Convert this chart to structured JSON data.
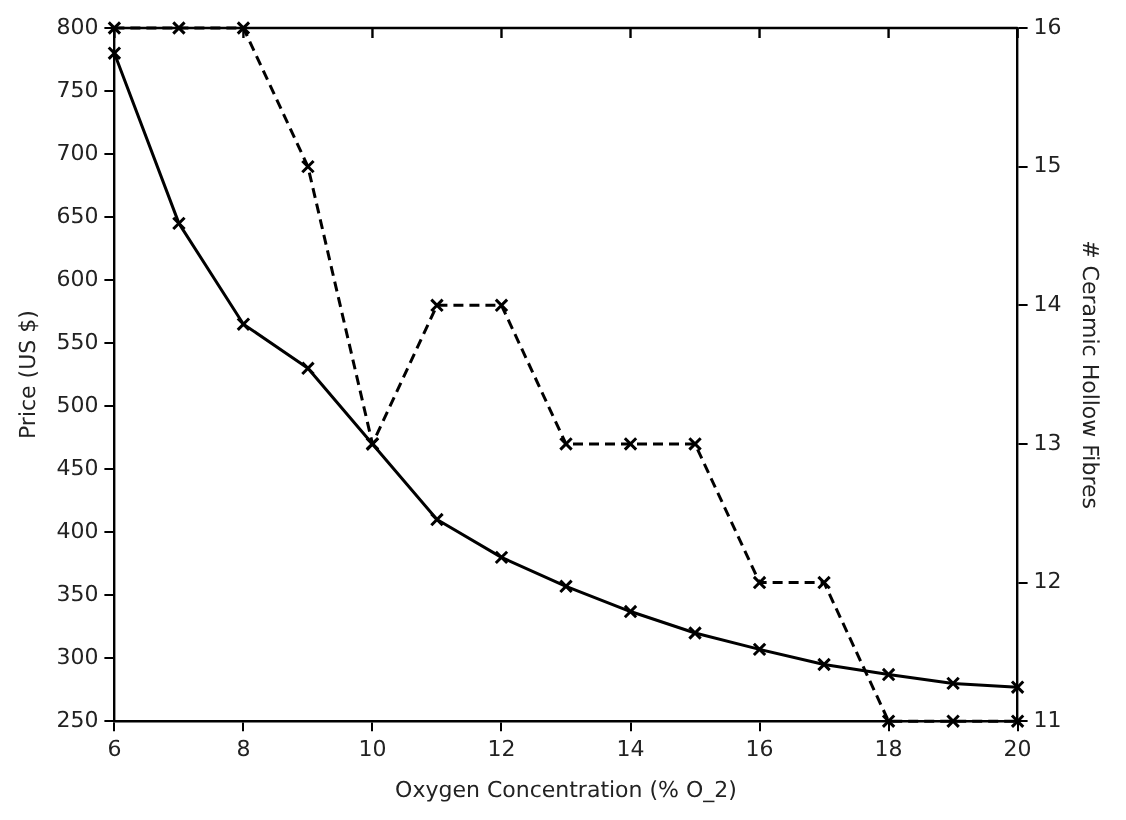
{
  "chart_data": {
    "type": "line",
    "xlabel": "Oxygen Concentration (% O_2)",
    "ylabel": "Price (US $)",
    "y2label": "# Ceramic Hollow Fibres",
    "x": [
      6,
      7,
      8,
      9,
      10,
      11,
      12,
      13,
      14,
      15,
      16,
      17,
      18,
      19,
      20
    ],
    "series": [
      {
        "color": "#000000",
        "marker": "cross",
        "line_style": "solid",
        "values": [
          780,
          645,
          565,
          530,
          470,
          410,
          380,
          357,
          337,
          320,
          307,
          295,
          287,
          280,
          277
        ]
      },
      {
        "color": "#000000",
        "marker": "cross",
        "line_style": "dashed",
        "axis": "y2",
        "values": [
          16,
          16,
          16,
          15,
          13,
          14,
          14,
          13,
          13,
          13,
          12,
          12,
          11,
          11,
          11
        ]
      }
    ],
    "xlim": [
      6,
      20
    ],
    "xticks": [
      6,
      8,
      10,
      12,
      14,
      16,
      18,
      20
    ],
    "ylim": [
      250,
      800
    ],
    "yticks": [
      250,
      300,
      350,
      400,
      450,
      500,
      550,
      600,
      650,
      700,
      750,
      800
    ],
    "y2lim": [
      11,
      16
    ],
    "y2ticks": [
      11,
      12,
      13,
      14,
      15,
      16
    ],
    "grid": false,
    "legend": false
  }
}
